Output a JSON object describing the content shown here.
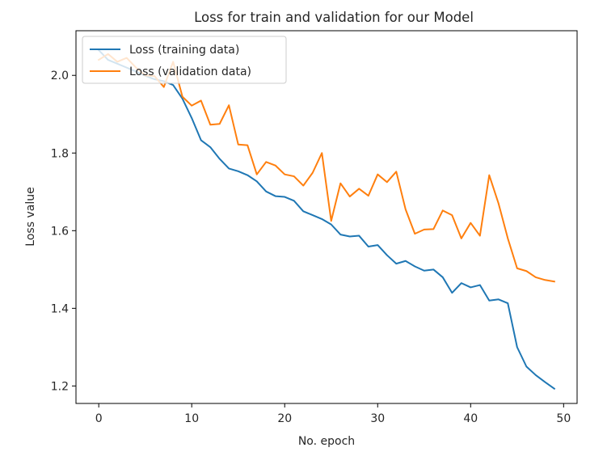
{
  "chart_data": {
    "type": "line",
    "title": "Loss for train and validation for our Model",
    "xlabel": "No. epoch",
    "ylabel": "Loss value",
    "xlim": [
      -2.45,
      51.45
    ],
    "ylim": [
      1.155,
      2.115
    ],
    "xticks": [
      0,
      10,
      20,
      30,
      40,
      50
    ],
    "yticks": [
      1.2,
      1.4,
      1.6,
      1.8,
      2.0
    ],
    "xtick_labels": [
      "0",
      "10",
      "20",
      "30",
      "40",
      "50"
    ],
    "ytick_labels": [
      "1.2",
      "1.4",
      "1.6",
      "1.8",
      "2.0"
    ],
    "grid": false,
    "legend_position": "upper-left",
    "x": [
      0,
      1,
      2,
      3,
      4,
      5,
      6,
      7,
      8,
      9,
      10,
      11,
      12,
      13,
      14,
      15,
      16,
      17,
      18,
      19,
      20,
      21,
      22,
      23,
      24,
      25,
      26,
      27,
      28,
      29,
      30,
      31,
      32,
      33,
      34,
      35,
      36,
      37,
      38,
      39,
      40,
      41,
      42,
      43,
      44,
      45,
      46,
      47,
      48,
      49
    ],
    "series": [
      {
        "name": "Loss (training data)",
        "color": "#1f77b4",
        "values": [
          2.065,
          2.04,
          2.03,
          2.02,
          2.01,
          1.999,
          1.99,
          1.985,
          1.975,
          1.94,
          1.89,
          1.833,
          1.815,
          1.785,
          1.76,
          1.753,
          1.743,
          1.727,
          1.701,
          1.689,
          1.687,
          1.677,
          1.65,
          1.64,
          1.63,
          1.616,
          1.59,
          1.585,
          1.587,
          1.559,
          1.563,
          1.537,
          1.515,
          1.522,
          1.508,
          1.497,
          1.5,
          1.48,
          1.44,
          1.465,
          1.454,
          1.46,
          1.42,
          1.423,
          1.413,
          1.3,
          1.25,
          1.228,
          1.21,
          1.193
        ]
      },
      {
        "name": "Loss (validation data)",
        "color": "#ff7f0e",
        "values": [
          2.04,
          2.055,
          2.035,
          2.045,
          2.02,
          2.0,
          1.998,
          1.97,
          2.035,
          1.945,
          1.922,
          1.935,
          1.873,
          1.875,
          1.923,
          1.822,
          1.82,
          1.745,
          1.777,
          1.768,
          1.745,
          1.74,
          1.716,
          1.749,
          1.8,
          1.625,
          1.722,
          1.688,
          1.708,
          1.69,
          1.745,
          1.725,
          1.752,
          1.655,
          1.592,
          1.603,
          1.604,
          1.652,
          1.64,
          1.58,
          1.62,
          1.587,
          1.743,
          1.67,
          1.58,
          1.503,
          1.496,
          1.48,
          1.473,
          1.469
        ]
      }
    ]
  }
}
